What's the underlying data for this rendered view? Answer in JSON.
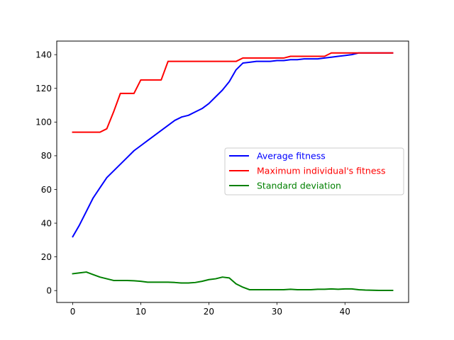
{
  "chart_data": {
    "type": "line",
    "title": "",
    "xlabel": "",
    "ylabel": "",
    "xlim": [
      -2.35,
      49.35
    ],
    "ylim": [
      -7.05,
      148.05
    ],
    "xticks": [
      0,
      10,
      20,
      30,
      40
    ],
    "yticks": [
      0,
      20,
      40,
      60,
      80,
      100,
      120,
      140
    ],
    "grid": false,
    "legend_position": "center-right",
    "x": [
      0,
      1,
      2,
      3,
      4,
      5,
      6,
      7,
      8,
      9,
      10,
      11,
      12,
      13,
      14,
      15,
      16,
      17,
      18,
      19,
      20,
      21,
      22,
      23,
      24,
      25,
      26,
      27,
      28,
      29,
      30,
      31,
      32,
      33,
      34,
      35,
      36,
      37,
      38,
      39,
      40,
      41,
      42,
      43,
      44,
      45,
      46,
      47
    ],
    "series": [
      {
        "name": "Average fitness",
        "color": "#0000ff",
        "values": [
          32,
          39,
          47,
          55,
          61,
          67,
          71,
          75,
          79,
          83,
          86,
          89,
          92,
          95,
          98,
          101,
          103,
          104,
          106,
          108,
          111,
          115,
          119,
          124,
          131,
          135,
          135.5,
          136,
          136,
          136,
          136.5,
          136.5,
          137,
          137,
          137.5,
          137.5,
          137.5,
          138,
          138.5,
          139,
          139.5,
          140,
          141,
          141,
          141,
          141,
          141,
          141
        ]
      },
      {
        "name": "Maximum individual's fitness",
        "color": "#ff0000",
        "values": [
          94,
          94,
          94,
          94,
          94,
          96,
          106,
          117,
          117,
          117,
          125,
          125,
          125,
          125,
          136,
          136,
          136,
          136,
          136,
          136,
          136,
          136,
          136,
          136,
          136,
          138,
          138,
          138,
          138,
          138,
          138,
          138,
          139,
          139,
          139,
          139,
          139,
          139,
          141,
          141,
          141,
          141,
          141,
          141,
          141,
          141,
          141,
          141
        ]
      },
      {
        "name": "Standard deviation",
        "color": "#008000",
        "values": [
          10,
          10.5,
          11,
          9.5,
          8,
          7,
          6,
          6,
          6,
          5.8,
          5.5,
          5,
          5,
          5,
          5,
          4.8,
          4.5,
          4.5,
          4.8,
          5.5,
          6.5,
          7,
          8,
          7.5,
          4,
          2,
          0.5,
          0.5,
          0.5,
          0.5,
          0.5,
          0.5,
          0.8,
          0.5,
          0.5,
          0.5,
          0.8,
          0.8,
          1,
          0.8,
          1,
          1,
          0.5,
          0.3,
          0.2,
          0.1,
          0.1,
          0.1
        ]
      }
    ]
  }
}
